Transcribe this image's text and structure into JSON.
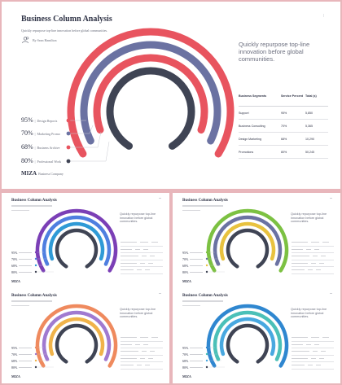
{
  "main": {
    "title": "Business Column Analysis",
    "subtitle": "Quickly repurpose top-line innovation before global communities.",
    "author": "By Sean Hamilton",
    "tagline": "Quickly repurpose top-line innovation before global communities.",
    "table": {
      "headers": [
        "Business Segments",
        "Service Percent",
        "Total (s)"
      ],
      "rows": [
        [
          "Support",
          "95%",
          "5,850"
        ],
        [
          "Business Consulting",
          "70%",
          "5,365"
        ],
        [
          "Design Marketing",
          "68%",
          "10,290"
        ],
        [
          "Promotions",
          "80%",
          "50,245"
        ]
      ]
    },
    "legend": [
      {
        "pct": "95%",
        "label": "Design Reports",
        "color": "#e8545f"
      },
      {
        "pct": "70%",
        "label": "Marketing Promo",
        "color": "#6b72a2"
      },
      {
        "pct": "68%",
        "label": "Business Archive",
        "color": "#e8545f"
      },
      {
        "pct": "80%",
        "label": "Professional Work",
        "color": "#3f4454"
      }
    ],
    "brand_name": "MIZA",
    "brand_sub": "Business Company",
    "rings": [
      {
        "color": "#e8545f",
        "percent": 95
      },
      {
        "color": "#6b72a2",
        "percent": 70
      },
      {
        "color": "#e8545f",
        "percent": 68
      },
      {
        "color": "#3f4454",
        "percent": 80
      }
    ]
  },
  "thumbs": [
    {
      "title": "Business Column Analysis",
      "tagline": "Quickly repurpose top-line innovation before global communities.",
      "brand": "MIZA",
      "legend": [
        "95%",
        "70%",
        "68%",
        "80%"
      ],
      "colors": [
        "#7b3fb6",
        "#4f7fe0",
        "#2f9ad6",
        "#3f4454"
      ]
    },
    {
      "title": "Business Column Analysis",
      "tagline": "Quickly repurpose top-line innovation before global communities.",
      "brand": "MIZA",
      "legend": [
        "95%",
        "70%",
        "68%",
        "80%"
      ],
      "colors": [
        "#7cc142",
        "#6b72a2",
        "#e8c23f",
        "#3f4454"
      ]
    },
    {
      "title": "Business Column Analysis",
      "tagline": "Quickly repurpose top-line innovation before global communities.",
      "brand": "MIZA",
      "legend": [
        "95%",
        "70%",
        "68%",
        "80%"
      ],
      "colors": [
        "#ef8a5e",
        "#a07ad0",
        "#f0b34a",
        "#3f4454"
      ]
    },
    {
      "title": "Business Column Analysis",
      "tagline": "Quickly repurpose top-line innovation before global communities.",
      "brand": "MIZA",
      "legend": [
        "95%",
        "70%",
        "68%",
        "80%"
      ],
      "colors": [
        "#2f87d0",
        "#4bc0b8",
        "#48a8e0",
        "#3f4454"
      ]
    }
  ]
}
